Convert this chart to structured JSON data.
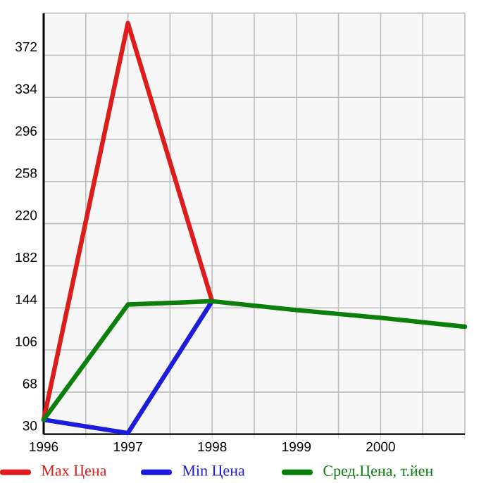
{
  "chart_data": {
    "type": "line",
    "x": [
      1996,
      1997,
      1998,
      1999,
      2000,
      2001
    ],
    "series": [
      {
        "name": "Max Цена",
        "color": "#dd1c1c",
        "values": [
          43,
          401,
          150,
          null,
          null,
          null
        ]
      },
      {
        "name": "Min Цена",
        "color": "#1c1cdd",
        "values": [
          43,
          31,
          150,
          null,
          null,
          null
        ]
      },
      {
        "name": "Сред.Цена, т.йен",
        "color": "#0a800a",
        "values": [
          43,
          147,
          150,
          142,
          135,
          127
        ]
      }
    ],
    "xlim": [
      1996,
      2001
    ],
    "xticks": [
      1996,
      {
        "value": 1996.5,
        "label": null
      },
      1997,
      {
        "value": 1997.5,
        "label": null
      },
      1998,
      {
        "value": 1998.5,
        "label": null
      },
      1999,
      {
        "value": 1999.5,
        "label": null
      },
      2000,
      {
        "value": 2000.5,
        "label": null
      },
      {
        "value": 2001,
        "label": null
      }
    ],
    "ylim": [
      30,
      410
    ],
    "yticks": [
      30,
      68,
      106,
      144,
      182,
      220,
      258,
      296,
      334,
      372,
      {
        "value": 410,
        "label": null
      }
    ],
    "grid": true,
    "legend": "bottom",
    "marker": "none",
    "line_style": "solid"
  }
}
